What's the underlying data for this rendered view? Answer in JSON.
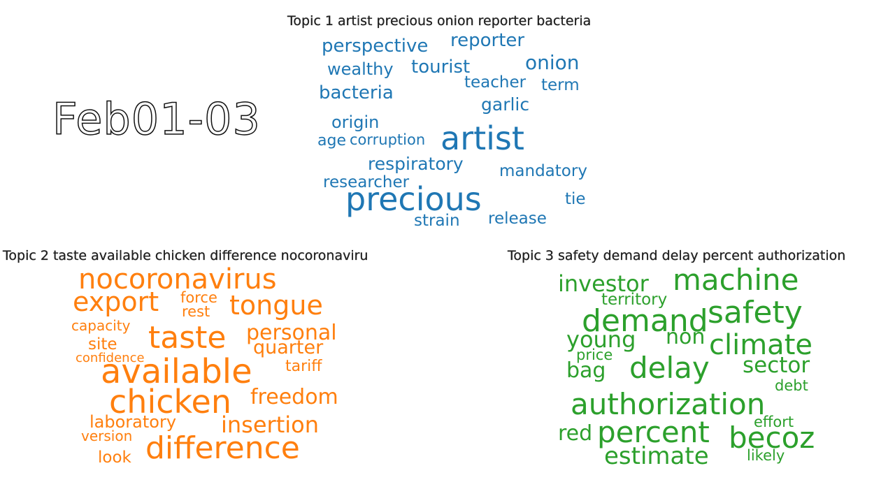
{
  "period_label": "Feb01-03",
  "topics": [
    {
      "title": "Topic 1 artist precious onion reporter bacteria",
      "color": "#1f77b4",
      "words": [
        "perspective",
        "reporter",
        "wealthy",
        "tourist",
        "onion",
        "bacteria",
        "teacher",
        "term",
        "garlic",
        "origin",
        "age",
        "corruption",
        "artist",
        "respiratory",
        "mandatory",
        "researcher",
        "precious",
        "tie",
        "strain",
        "release"
      ]
    },
    {
      "title": "Topic 2 taste available chicken difference nocoronaviru",
      "color": "#ff7f0e",
      "words": [
        "nocoronavirus",
        "export",
        "force",
        "rest",
        "tongue",
        "capacity",
        "taste",
        "personal",
        "site",
        "quarter",
        "confidence",
        "available",
        "tariff",
        "chicken",
        "freedom",
        "laboratory",
        "insertion",
        "version",
        "difference",
        "look"
      ]
    },
    {
      "title": "Topic 3 safety demand delay percent authorization",
      "color": "#2ca02c",
      "words": [
        "investor",
        "machine",
        "territory",
        "safety",
        "demand",
        "young",
        "non",
        "climate",
        "price",
        "delay",
        "bag",
        "sector",
        "debt",
        "authorization",
        "effort",
        "red",
        "percent",
        "becoz",
        "estimate",
        "likely"
      ]
    }
  ]
}
